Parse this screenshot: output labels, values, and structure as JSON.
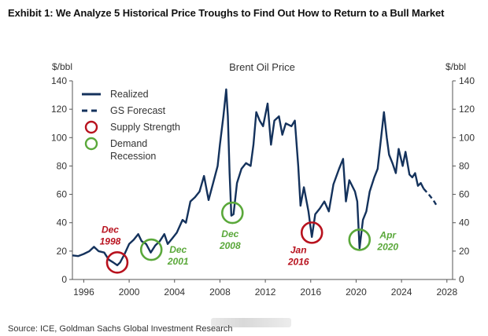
{
  "exhibit_title": "Exhibit 1: We Analyze 5 Historical Price Troughs to Find Out How to Return to a Bull Market",
  "source": "Source: ICE, Goldman Sachs Global Investment Research",
  "colors": {
    "line": "#14325c",
    "supply": "#b8121e",
    "demand": "#5aa83a",
    "axis": "#555555"
  },
  "chart_data": {
    "type": "line",
    "title": "Brent Oil Price",
    "ylabel_left": "$/bbl",
    "ylabel_right": "$/bbl",
    "xlim": [
      1995,
      2028.5
    ],
    "ylim": [
      0,
      140
    ],
    "x_ticks": [
      1996,
      2000,
      2004,
      2008,
      2012,
      2016,
      2020,
      2024,
      2028
    ],
    "x_tick_labels": [
      "1996",
      "2000",
      "2004",
      "2008",
      "2012",
      "2016",
      "2020",
      "2024",
      "2028"
    ],
    "y_ticks": [
      0,
      20,
      40,
      60,
      80,
      100,
      120,
      140
    ],
    "y_tick_labels": [
      "0",
      "20",
      "40",
      "60",
      "80",
      "100",
      "120",
      "140"
    ],
    "legend": [
      {
        "label": "Realized",
        "kind": "solid-line"
      },
      {
        "label": "GS Forecast",
        "kind": "dashed-line"
      },
      {
        "label": "Supply Strength",
        "kind": "red-circle"
      },
      {
        "label": "Demand Recession",
        "kind": "green-circle"
      }
    ],
    "series": [
      {
        "name": "Realized",
        "style": "solid",
        "points": [
          [
            1995.0,
            17
          ],
          [
            1995.5,
            16.5
          ],
          [
            1996.0,
            18
          ],
          [
            1996.5,
            20
          ],
          [
            1996.9,
            23
          ],
          [
            1997.3,
            20
          ],
          [
            1997.8,
            19
          ],
          [
            1998.2,
            14
          ],
          [
            1998.6,
            12
          ],
          [
            1998.95,
            10
          ],
          [
            1999.2,
            12
          ],
          [
            1999.6,
            18
          ],
          [
            2000.0,
            25
          ],
          [
            2000.4,
            28
          ],
          [
            2000.8,
            32
          ],
          [
            2001.1,
            27
          ],
          [
            2001.5,
            25
          ],
          [
            2001.9,
            19
          ],
          [
            2002.3,
            24
          ],
          [
            2002.7,
            27
          ],
          [
            2003.1,
            32
          ],
          [
            2003.4,
            25
          ],
          [
            2003.8,
            29
          ],
          [
            2004.2,
            33
          ],
          [
            2004.7,
            42
          ],
          [
            2005.0,
            40
          ],
          [
            2005.4,
            55
          ],
          [
            2005.8,
            58
          ],
          [
            2006.2,
            62
          ],
          [
            2006.6,
            73
          ],
          [
            2007.0,
            56
          ],
          [
            2007.4,
            68
          ],
          [
            2007.8,
            80
          ],
          [
            2008.0,
            95
          ],
          [
            2008.3,
            115
          ],
          [
            2008.55,
            134
          ],
          [
            2008.7,
            115
          ],
          [
            2008.85,
            75
          ],
          [
            2009.0,
            45
          ],
          [
            2009.2,
            46
          ],
          [
            2009.5,
            68
          ],
          [
            2009.9,
            78
          ],
          [
            2010.3,
            82
          ],
          [
            2010.7,
            80
          ],
          [
            2010.95,
            95
          ],
          [
            2011.2,
            118
          ],
          [
            2011.5,
            112
          ],
          [
            2011.8,
            108
          ],
          [
            2012.2,
            124
          ],
          [
            2012.5,
            95
          ],
          [
            2012.8,
            112
          ],
          [
            2013.2,
            115
          ],
          [
            2013.5,
            102
          ],
          [
            2013.8,
            110
          ],
          [
            2014.3,
            108
          ],
          [
            2014.6,
            112
          ],
          [
            2014.9,
            80
          ],
          [
            2015.1,
            52
          ],
          [
            2015.4,
            65
          ],
          [
            2015.8,
            48
          ],
          [
            2016.1,
            30
          ],
          [
            2016.4,
            46
          ],
          [
            2016.8,
            50
          ],
          [
            2017.2,
            55
          ],
          [
            2017.6,
            48
          ],
          [
            2018.0,
            67
          ],
          [
            2018.5,
            78
          ],
          [
            2018.85,
            85
          ],
          [
            2019.1,
            55
          ],
          [
            2019.4,
            70
          ],
          [
            2019.9,
            62
          ],
          [
            2020.1,
            55
          ],
          [
            2020.3,
            22
          ],
          [
            2020.6,
            42
          ],
          [
            2020.9,
            48
          ],
          [
            2021.2,
            62
          ],
          [
            2021.6,
            72
          ],
          [
            2021.9,
            78
          ],
          [
            2022.2,
            100
          ],
          [
            2022.45,
            118
          ],
          [
            2022.7,
            100
          ],
          [
            2022.9,
            88
          ],
          [
            2023.2,
            82
          ],
          [
            2023.5,
            75
          ],
          [
            2023.75,
            92
          ],
          [
            2024.1,
            80
          ],
          [
            2024.35,
            90
          ],
          [
            2024.7,
            74
          ],
          [
            2024.95,
            72
          ],
          [
            2025.2,
            75
          ],
          [
            2025.45,
            66
          ],
          [
            2025.7,
            68
          ],
          [
            2025.95,
            64
          ]
        ]
      },
      {
        "name": "GS Forecast",
        "style": "dashed",
        "points": [
          [
            2025.95,
            64
          ],
          [
            2026.4,
            60
          ],
          [
            2026.8,
            56
          ],
          [
            2027.1,
            52
          ]
        ]
      }
    ],
    "annotations": [
      {
        "label": "Dec 1998",
        "lines": [
          "Dec",
          "1998"
        ],
        "kind": "supply",
        "x": 1998.95,
        "y": 12
      },
      {
        "label": "Dec 2001",
        "lines": [
          "Dec",
          "2001"
        ],
        "kind": "demand",
        "x": 2001.95,
        "y": 21
      },
      {
        "label": "Dec 2008",
        "lines": [
          "Dec",
          "2008"
        ],
        "kind": "demand",
        "x": 2009.1,
        "y": 47
      },
      {
        "label": "Jan 2016",
        "lines": [
          "Jan",
          "2016"
        ],
        "kind": "supply",
        "x": 2016.1,
        "y": 33
      },
      {
        "label": "Apr 2020",
        "lines": [
          "Apr",
          "2020"
        ],
        "kind": "demand",
        "x": 2020.3,
        "y": 28
      }
    ]
  }
}
